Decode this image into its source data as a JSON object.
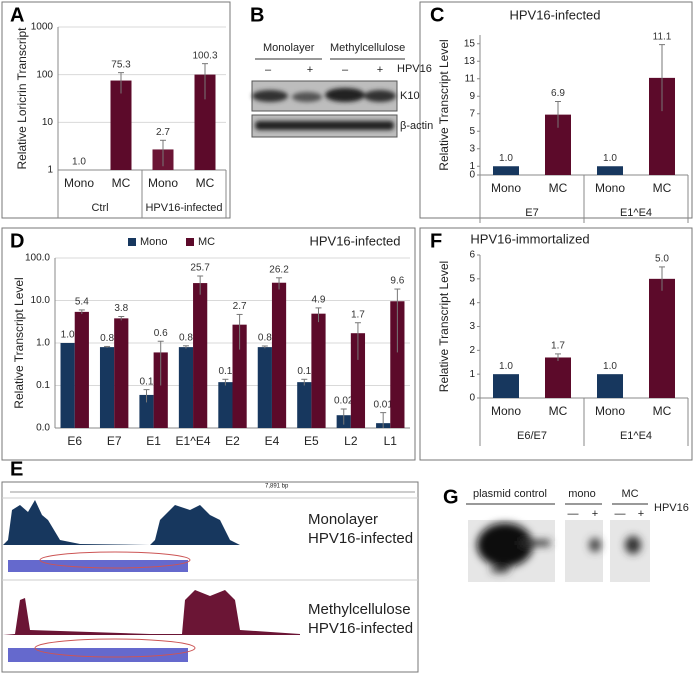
{
  "chart_data": [
    {
      "type": "bar",
      "label": "A",
      "log": true,
      "ylabel": "Relative Loricrin Transcript",
      "categories": [
        "Mono",
        "MC",
        "Mono",
        "MC"
      ],
      "groups": [
        "Ctrl",
        "HPV16-infected"
      ],
      "values": [
        1.0,
        75.3,
        2.7,
        100.3
      ],
      "value_labels": [
        "1.0",
        "75.3",
        "2.7",
        "100.3"
      ],
      "errors": [
        0,
        35,
        1.5,
        70
      ],
      "colors": [
        "#6b1535",
        "#5c0a2a",
        "#6b1535",
        "#5c0a2a"
      ],
      "ylim": [
        1,
        1000
      ],
      "yticks": [
        1,
        10,
        100,
        1000
      ],
      "grid": true
    },
    {
      "type": "bar",
      "label": "C",
      "title": "HPV16-infected",
      "ylabel": "Relative Transcript Level",
      "categories": [
        "Mono",
        "MC",
        "Mono",
        "MC"
      ],
      "groups": [
        "E7",
        "E1^E4"
      ],
      "values": [
        1.0,
        6.9,
        1.0,
        11.1
      ],
      "value_labels": [
        "1.0",
        "6.9",
        "1.0",
        "11.1"
      ],
      "errors": [
        0,
        1.5,
        0,
        3.8
      ],
      "colors": [
        "#17375e",
        "#5c0a2a",
        "#17375e",
        "#5c0a2a"
      ],
      "ylim": [
        0,
        16
      ],
      "yticks": [
        0,
        1,
        3,
        5,
        7,
        9,
        11,
        13,
        15
      ],
      "grid": false
    },
    {
      "type": "bar",
      "label": "D",
      "title": "HPV16-infected",
      "log": true,
      "ylabel": "Relative Transcript Level",
      "categories": [
        "E6",
        "E7",
        "E1",
        "E1^E4",
        "E2",
        "E4",
        "E5",
        "L2",
        "L1"
      ],
      "series": [
        {
          "name": "Mono",
          "color": "#17375e",
          "values": [
            1.0,
            0.8,
            0.06,
            0.8,
            0.12,
            0.8,
            0.12,
            0.02,
            0.013
          ],
          "value_labels": [
            "1.0",
            "0.8",
            "0.1",
            "0.8",
            "0.1",
            "0.8",
            "0.1",
            "0.02",
            "0.01"
          ],
          "errors": [
            0,
            0.03,
            0.02,
            0.06,
            0.02,
            0.05,
            0.02,
            0.008,
            0.01
          ]
        },
        {
          "name": "MC",
          "color": "#5c0a2a",
          "values": [
            5.4,
            3.8,
            0.6,
            25.7,
            2.7,
            26.2,
            4.9,
            1.7,
            9.6
          ],
          "value_labels": [
            "5.4",
            "3.8",
            "0.6",
            "25.7",
            "2.7",
            "26.2",
            "4.9",
            "1.7",
            "9.6"
          ],
          "errors": [
            0.6,
            0.4,
            0.5,
            12,
            2,
            8,
            1.8,
            1.3,
            9
          ]
        }
      ],
      "ylim": [
        0.01,
        100
      ],
      "yticks": [
        {
          "value": 0.01,
          "label": "0.0"
        },
        {
          "value": 0.1,
          "label": "0.1"
        },
        {
          "value": 1,
          "label": "1.0"
        },
        {
          "value": 10,
          "label": "10.0"
        },
        {
          "value": 100,
          "label": "100.0"
        }
      ],
      "grid": true,
      "legend": "top"
    },
    {
      "type": "bar",
      "label": "F",
      "title": "HPV16-immortalized",
      "ylabel": "Relative Transcript Level",
      "categories": [
        "Mono",
        "MC",
        "Mono",
        "MC"
      ],
      "groups": [
        "E6/E7",
        "E1^E4"
      ],
      "values": [
        1.0,
        1.7,
        1.0,
        5.0
      ],
      "value_labels": [
        "1.0",
        "1.7",
        "1.0",
        "5.0"
      ],
      "errors": [
        0,
        0.15,
        0,
        0.5
      ],
      "colors": [
        "#17375e",
        "#5c0a2a",
        "#17375e",
        "#5c0a2a"
      ],
      "ylim": [
        0,
        6
      ],
      "yticks": [
        0,
        1,
        2,
        3,
        4,
        5,
        6
      ],
      "grid": false
    }
  ],
  "blot_b": {
    "label": "B",
    "monolayer": "Monolayer",
    "methylcellulose": "Methylcellulose",
    "lanes": [
      "–",
      "+",
      "–",
      "+"
    ],
    "treatment": "HPV16",
    "bands": [
      "K10",
      "β-actin"
    ]
  },
  "tracks_e": {
    "label": "E",
    "scale": "7,891 bp",
    "tracks": [
      {
        "line1": "Monolayer",
        "line2": "HPV16-infected"
      },
      {
        "line1": "Methylcellulose",
        "line2": "HPV16-infected"
      }
    ]
  },
  "blot_g": {
    "label": "G",
    "control": "plasmid control",
    "mono": "mono",
    "mc": "MC",
    "lanes": [
      "—",
      "+",
      "—",
      "+"
    ],
    "treatment": "HPV16"
  }
}
